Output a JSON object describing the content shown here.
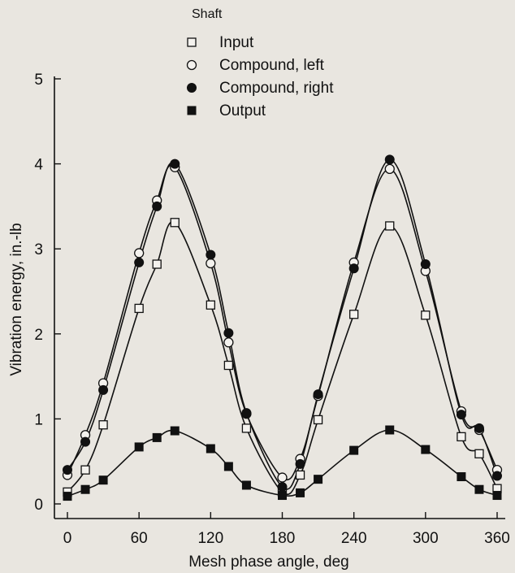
{
  "chart_data": {
    "type": "line",
    "title": "",
    "legend_title": "Shaft",
    "xlabel": "Mesh phase angle, deg",
    "ylabel": "Vibration energy, in.-lb",
    "xlim": [
      0,
      360
    ],
    "ylim": [
      0,
      5
    ],
    "x_ticks": [
      0,
      60,
      120,
      180,
      240,
      300,
      360
    ],
    "y_ticks": [
      0,
      1,
      2,
      3,
      4,
      5
    ],
    "grid": false,
    "legend_position": "top-center",
    "series": [
      {
        "name": "Input",
        "marker": "open-square",
        "x": [
          0,
          15,
          30,
          60,
          75,
          90,
          120,
          135,
          150,
          180,
          195,
          210,
          240,
          270,
          300,
          330,
          345,
          360
        ],
        "y": [
          0.14,
          0.4,
          0.93,
          2.3,
          2.82,
          3.31,
          2.34,
          1.63,
          0.89,
          0.14,
          0.34,
          0.99,
          2.23,
          3.27,
          2.22,
          0.79,
          0.59,
          0.18
        ]
      },
      {
        "name": "Compound, left",
        "marker": "open-circle",
        "x": [
          0,
          15,
          30,
          60,
          75,
          90,
          120,
          135,
          150,
          180,
          195,
          210,
          240,
          270,
          300,
          330,
          345,
          360
        ],
        "y": [
          0.34,
          0.81,
          1.42,
          2.95,
          3.57,
          3.96,
          2.83,
          1.9,
          1.06,
          0.31,
          0.53,
          1.27,
          2.84,
          3.94,
          2.74,
          1.09,
          0.87,
          0.4
        ]
      },
      {
        "name": "Compound, right",
        "marker": "filled-circle",
        "x": [
          0,
          15,
          30,
          60,
          75,
          90,
          120,
          135,
          150,
          180,
          195,
          210,
          240,
          270,
          300,
          330,
          345,
          360
        ],
        "y": [
          0.4,
          0.73,
          1.34,
          2.84,
          3.5,
          4.0,
          2.93,
          2.01,
          1.07,
          0.2,
          0.47,
          1.29,
          2.77,
          4.05,
          2.82,
          1.05,
          0.89,
          0.33
        ]
      },
      {
        "name": "Output",
        "marker": "filled-square",
        "x": [
          0,
          15,
          30,
          60,
          75,
          90,
          120,
          135,
          150,
          180,
          195,
          210,
          240,
          270,
          300,
          330,
          345,
          360
        ],
        "y": [
          0.09,
          0.17,
          0.28,
          0.67,
          0.78,
          0.86,
          0.65,
          0.44,
          0.22,
          0.1,
          0.13,
          0.29,
          0.63,
          0.87,
          0.64,
          0.32,
          0.17,
          0.1
        ]
      }
    ]
  },
  "colors": {
    "background": "#e9e6e0",
    "ink": "#111111"
  }
}
